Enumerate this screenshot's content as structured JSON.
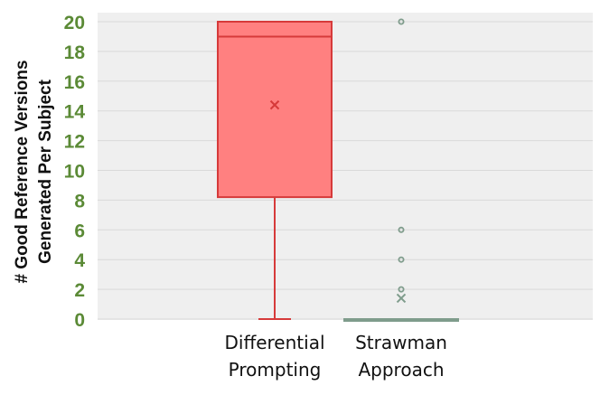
{
  "chart_data": {
    "type": "box",
    "ylabel_lines": [
      "# Good Reference Versions",
      "Generated Per Subject"
    ],
    "ylim": [
      0,
      20
    ],
    "yticks": [
      0,
      2,
      4,
      6,
      8,
      10,
      12,
      14,
      16,
      18,
      20
    ],
    "grid": true,
    "categories": [
      {
        "name_lines": [
          "Differential",
          "Prompting"
        ],
        "whisker_low": 0,
        "q1": 8.2,
        "median": 19,
        "q3": 20,
        "whisker_high": 20,
        "mean": 14.4,
        "outliers": [],
        "fill_color": "#ff8080",
        "line_color": "#d63a3a"
      },
      {
        "name_lines": [
          "Strawman",
          "Approach"
        ],
        "whisker_low": 0,
        "q1": 0,
        "median": 0,
        "q3": 0,
        "whisker_high": 0,
        "mean": 1.4,
        "outliers": [
          2,
          4,
          6,
          20
        ],
        "fill_color": "#a9bfb3",
        "line_color": "#7f9c8c"
      }
    ],
    "colors": {
      "plot_background": "#efefef",
      "grid": "#d9d9d9",
      "tick_label": "#5b8a36"
    }
  }
}
